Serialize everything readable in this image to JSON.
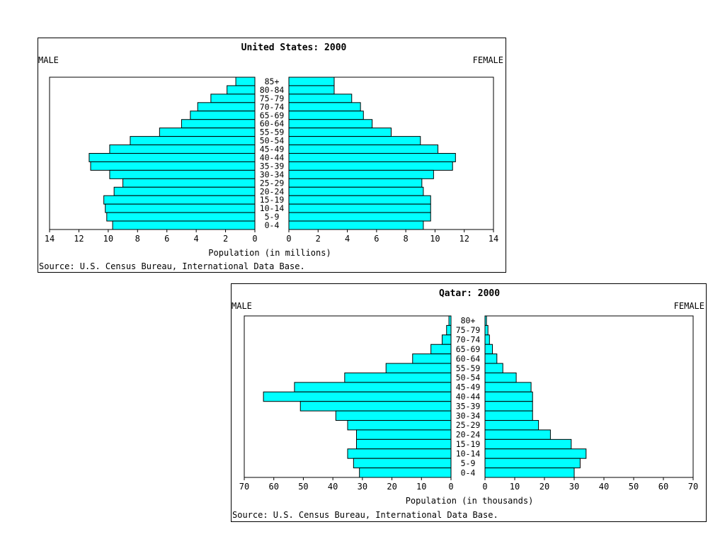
{
  "chart_data": [
    {
      "type": "bar",
      "title": "United States: 2000",
      "left_label": "MALE",
      "right_label": "FEMALE",
      "xlabel": "Population (in millions)",
      "source": "Source: U.S. Census Bureau, International Data Base.",
      "xlim": [
        0,
        14
      ],
      "ticks": [
        "14",
        "12",
        "10",
        "8",
        "6",
        "4",
        "2",
        "0",
        "0",
        "2",
        "4",
        "6",
        "8",
        "10",
        "12",
        "14"
      ],
      "categories": [
        "85+",
        "80-84",
        "75-79",
        "70-74",
        "65-69",
        "60-64",
        "55-59",
        "50-54",
        "45-49",
        "40-44",
        "35-39",
        "30-34",
        "25-29",
        "20-24",
        "15-19",
        "10-14",
        "5-9",
        "0-4"
      ],
      "series": [
        {
          "name": "MALE",
          "values": [
            1.3,
            1.9,
            3.0,
            3.9,
            4.4,
            5.0,
            6.5,
            8.5,
            9.9,
            11.3,
            11.2,
            9.9,
            9.0,
            9.6,
            10.3,
            10.2,
            10.1,
            9.7
          ]
        },
        {
          "name": "FEMALE",
          "values": [
            3.1,
            3.1,
            4.3,
            4.9,
            5.1,
            5.7,
            7.0,
            9.0,
            10.2,
            11.4,
            11.2,
            9.9,
            9.1,
            9.2,
            9.7,
            9.7,
            9.7,
            9.2
          ]
        }
      ]
    },
    {
      "type": "bar",
      "title": "Qatar: 2000",
      "left_label": "MALE",
      "right_label": "FEMALE",
      "xlabel": "Population (in thousands)",
      "source": "Source: U.S. Census Bureau, International Data Base.",
      "xlim": [
        0,
        70
      ],
      "ticks": [
        "70",
        "60",
        "50",
        "40",
        "30",
        "20",
        "10",
        "0",
        "0",
        "10",
        "20",
        "30",
        "40",
        "50",
        "60",
        "70"
      ],
      "categories": [
        "80+",
        "75-79",
        "70-74",
        "65-69",
        "60-64",
        "55-59",
        "50-54",
        "45-49",
        "40-44",
        "35-39",
        "30-34",
        "25-29",
        "20-24",
        "15-19",
        "10-14",
        "5-9",
        "0-4"
      ],
      "series": [
        {
          "name": "MALE",
          "values": [
            0.7,
            1.5,
            3.0,
            6.8,
            13.0,
            22.0,
            36.0,
            53.0,
            63.5,
            51.0,
            39.0,
            35.0,
            32.0,
            32.0,
            35.0,
            33.0,
            31.0
          ]
        },
        {
          "name": "FEMALE",
          "values": [
            0.5,
            1.0,
            1.5,
            2.5,
            4.0,
            6.0,
            10.5,
            15.5,
            16.0,
            16.0,
            16.0,
            18.0,
            22.0,
            29.0,
            34.0,
            32.0,
            30.0
          ]
        }
      ]
    }
  ],
  "colors": {
    "bar_fill": "#00ffff",
    "bar_stroke": "#000000"
  }
}
